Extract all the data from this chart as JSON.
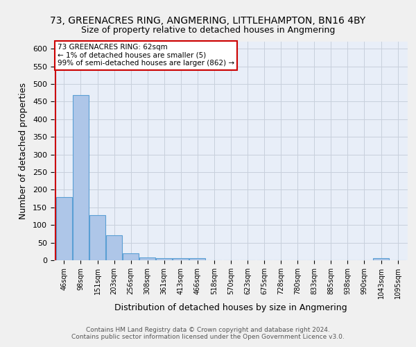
{
  "title1": "73, GREENACRES RING, ANGMERING, LITTLEHAMPTON, BN16 4BY",
  "title2": "Size of property relative to detached houses in Angmering",
  "xlabel": "Distribution of detached houses by size in Angmering",
  "ylabel": "Number of detached properties",
  "footer1": "Contains HM Land Registry data © Crown copyright and database right 2024.",
  "footer2": "Contains public sector information licensed under the Open Government Licence v3.0.",
  "annotation_title": "73 GREENACRES RING: 62sqm",
  "annotation_line2": "← 1% of detached houses are smaller (5)",
  "annotation_line3": "99% of semi-detached houses are larger (862) →",
  "bin_labels": [
    "46sqm",
    "98sqm",
    "151sqm",
    "203sqm",
    "256sqm",
    "308sqm",
    "361sqm",
    "413sqm",
    "466sqm",
    "518sqm",
    "570sqm",
    "623sqm",
    "675sqm",
    "728sqm",
    "780sqm",
    "833sqm",
    "885sqm",
    "938sqm",
    "990sqm",
    "1043sqm",
    "1095sqm"
  ],
  "bar_heights": [
    180,
    468,
    127,
    70,
    20,
    8,
    6,
    5,
    5,
    0,
    0,
    0,
    0,
    0,
    0,
    0,
    0,
    0,
    0,
    6,
    0
  ],
  "bar_color": "#aec6e8",
  "bar_edge_color": "#5a9fd4",
  "ylim": [
    0,
    620
  ],
  "yticks": [
    0,
    50,
    100,
    150,
    200,
    250,
    300,
    350,
    400,
    450,
    500,
    550,
    600
  ],
  "background_color": "#e8eef8",
  "grid_color": "#c8d0dc",
  "annotation_box_color": "#ffffff",
  "annotation_border_color": "#cc0000",
  "red_line_color": "#cc0000",
  "fig_background": "#f0f0f0"
}
